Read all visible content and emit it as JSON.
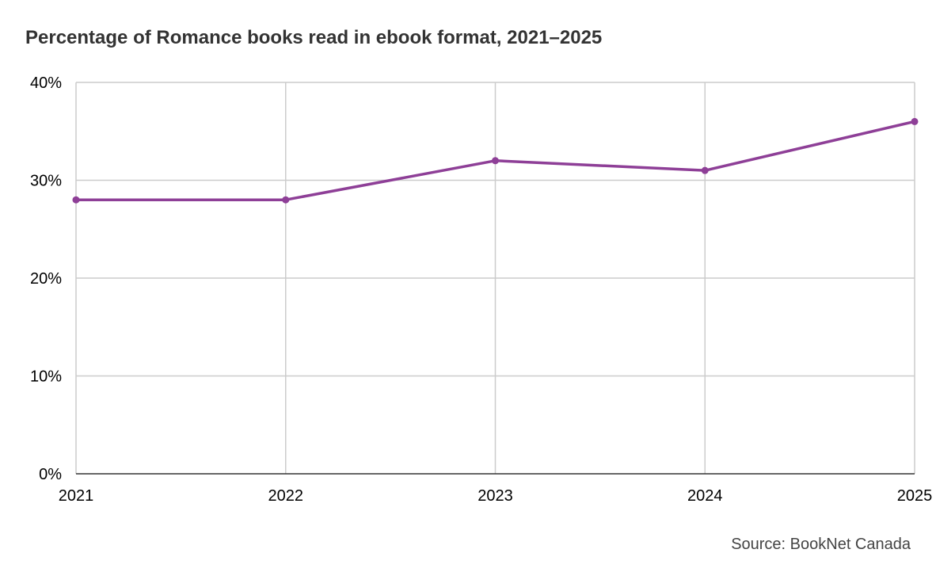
{
  "chart_data": {
    "type": "line",
    "title": "Percentage of Romance books read in ebook format, 2021–2025",
    "xlabel": "",
    "ylabel": "",
    "categories": [
      "2021",
      "2022",
      "2023",
      "2024",
      "2025"
    ],
    "series": [
      {
        "values": [
          28,
          28,
          32,
          31,
          36
        ],
        "color": "#8e3f97"
      }
    ],
    "ylim": [
      0,
      40
    ],
    "y_ticks": [
      0,
      10,
      20,
      30,
      40
    ],
    "y_tick_labels": [
      "0%",
      "10%",
      "20%",
      "30%",
      "40%"
    ],
    "grid": true,
    "legend": "none",
    "source": "Source: BookNet Canada"
  }
}
